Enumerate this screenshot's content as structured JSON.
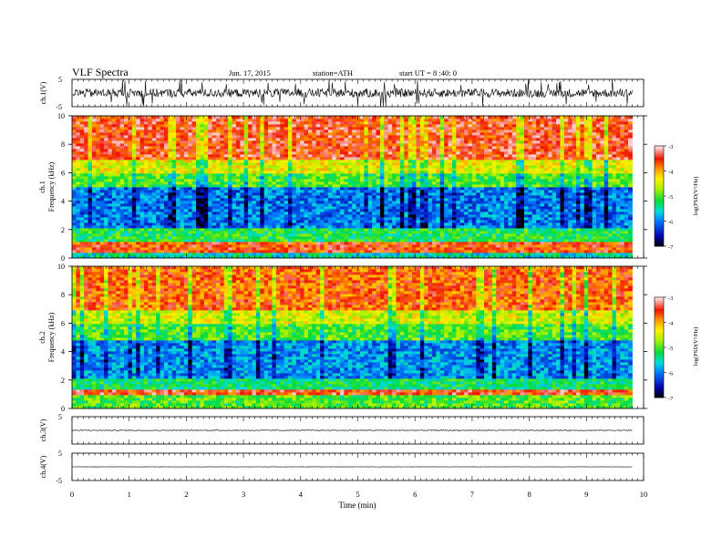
{
  "header": {
    "title": "VLF Spectra",
    "date": "Jun. 17, 2015",
    "station": "station=ATH",
    "start": "start  UT =   8 :40: 0"
  },
  "chart_data": [
    {
      "type": "line",
      "name": "ch1-waveform",
      "ylabel": "ch.1(V)",
      "ylim": [
        -5,
        5
      ],
      "yticks": [
        "5",
        "-5"
      ],
      "xlim": [
        0,
        10
      ],
      "description_level": "noisy waveform around 0 V, amplitude about ±2 V, spikes to ±5 V",
      "x_extent_min": 9.8
    },
    {
      "type": "heatmap",
      "name": "ch1-spectrogram",
      "ylabel_line1": "ch.1",
      "ylabel_line2": "Frequency (kHz)",
      "ylim": [
        0,
        10
      ],
      "yticks": [
        "0",
        "2",
        "4",
        "6",
        "8",
        "10"
      ],
      "xlim": [
        0,
        10
      ],
      "x_extent_min": 9.8,
      "colorbar": {
        "label": "log(PSD(V²/Hz)",
        "range": [
          -7,
          -3
        ],
        "ticks": [
          "-3",
          "-4",
          "-5",
          "-6",
          "-7"
        ]
      },
      "bands": [
        {
          "f_from": 0,
          "f_to": 0.4,
          "level": -5.5
        },
        {
          "f_from": 0.4,
          "f_to": 1.2,
          "level": -3.6
        },
        {
          "f_from": 1.2,
          "f_to": 2.2,
          "level": -5.2
        },
        {
          "f_from": 2.2,
          "f_to": 5.0,
          "level": -6.0
        },
        {
          "f_from": 5.0,
          "f_to": 6.0,
          "level": -5.0
        },
        {
          "f_from": 6.0,
          "f_to": 7.0,
          "level": -4.4
        },
        {
          "f_from": 7.0,
          "f_to": 10.0,
          "level": -3.5
        }
      ]
    },
    {
      "type": "heatmap",
      "name": "ch2-spectrogram",
      "ylabel_line1": "ch.2",
      "ylabel_line2": "Frequency (kHz)",
      "ylim": [
        0,
        10
      ],
      "yticks": [
        "0",
        "2",
        "4",
        "6",
        "8",
        "10"
      ],
      "xlim": [
        0,
        10
      ],
      "x_extent_min": 9.8,
      "colorbar": {
        "label": "log(PSD(V²/Hz)",
        "range": [
          -7,
          -3
        ],
        "ticks": [
          "-3",
          "-4",
          "-5",
          "-6",
          "-7"
        ]
      },
      "bands": [
        {
          "f_from": 0,
          "f_to": 1.0,
          "level": -5.0
        },
        {
          "f_from": 1.0,
          "f_to": 1.3,
          "level": -3.5
        },
        {
          "f_from": 1.3,
          "f_to": 2.2,
          "level": -5.3
        },
        {
          "f_from": 2.2,
          "f_to": 4.8,
          "level": -5.9
        },
        {
          "f_from": 4.8,
          "f_to": 6.0,
          "level": -5.0
        },
        {
          "f_from": 6.0,
          "f_to": 7.0,
          "level": -4.5
        },
        {
          "f_from": 7.0,
          "f_to": 10.0,
          "level": -3.7
        }
      ]
    },
    {
      "type": "line",
      "name": "ch3-waveform",
      "ylabel": "ch.3(V)",
      "ylim": [
        -5,
        5
      ],
      "yticks": [
        "5",
        "-5"
      ],
      "xlim": [
        0,
        10
      ],
      "x_extent_min": 9.8,
      "level": 0
    },
    {
      "type": "line",
      "name": "ch4-waveform",
      "ylabel": "ch.4(V)",
      "ylim": [
        -5,
        5
      ],
      "yticks": [
        "5",
        "-5"
      ],
      "xlim": [
        0,
        10
      ],
      "x_extent_min": 9.8,
      "level": 0,
      "xlabel": "Time (min)",
      "xticks": [
        "0",
        "1",
        "2",
        "3",
        "4",
        "5",
        "6",
        "7",
        "8",
        "9",
        "10"
      ]
    }
  ]
}
